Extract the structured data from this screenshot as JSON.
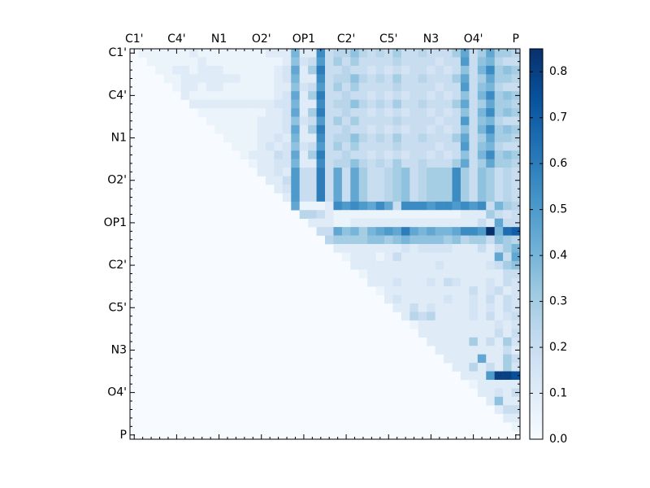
{
  "chart_data": {
    "type": "heatmap",
    "categories": [
      "C1'",
      null,
      null,
      null,
      null,
      "C4'",
      null,
      null,
      null,
      null,
      "N1",
      null,
      null,
      null,
      null,
      "O2'",
      null,
      null,
      null,
      null,
      "OP1",
      null,
      null,
      null,
      null,
      "C2'",
      null,
      null,
      null,
      null,
      "C5'",
      null,
      null,
      null,
      null,
      "N3",
      null,
      null,
      null,
      null,
      "O4'",
      null,
      null,
      null,
      null,
      "P"
    ],
    "values": [
      [
        0.05,
        0.05,
        0.05,
        0.05,
        0.05,
        0.05,
        0.1,
        0.05,
        0.05,
        0.05,
        0.05,
        0.05,
        0.05,
        0.05,
        0.05,
        0.1,
        0.1,
        0.1,
        0.4,
        0.1,
        0.1,
        0.55,
        0.2,
        0.25,
        0.25,
        0.35,
        0.25,
        0.2,
        0.25,
        0.2,
        0.3,
        0.2,
        0.2,
        0.25,
        0.2,
        0.2,
        0.2,
        0.3,
        0.45,
        0.2,
        0.3,
        0.45,
        0.3,
        0.3,
        0.25
      ],
      [
        0.05,
        0.05,
        0.05,
        0.05,
        0.05,
        0.05,
        0.1,
        0.05,
        0.05,
        0.05,
        0.05,
        0.05,
        0.05,
        0.05,
        0.05,
        0.05,
        0.1,
        0.35,
        0.15,
        0.2,
        0.5,
        0.2,
        0.3,
        0.2,
        0.3,
        0.2,
        0.2,
        0.2,
        0.2,
        0.25,
        0.2,
        0.2,
        0.2,
        0.2,
        0.15,
        0.2,
        0.2,
        0.5,
        0.2,
        0.35,
        0.4,
        0.25,
        0.2,
        0.2
      ],
      [
        0.05,
        0.05,
        0.1,
        0.1,
        0.05,
        0.1,
        0.1,
        0.1,
        0.05,
        0.05,
        0.05,
        0.05,
        0.05,
        0.05,
        0.1,
        0.15,
        0.45,
        0.1,
        0.3,
        0.6,
        0.2,
        0.2,
        0.25,
        0.2,
        0.2,
        0.15,
        0.2,
        0.15,
        0.2,
        0.15,
        0.2,
        0.2,
        0.15,
        0.2,
        0.15,
        0.2,
        0.35,
        0.2,
        0.4,
        0.55,
        0.3,
        0.35,
        0.3
      ],
      [
        0.05,
        0.05,
        0.1,
        0.1,
        0.1,
        0.1,
        0.1,
        0.1,
        0.1,
        0.05,
        0.05,
        0.05,
        0.05,
        0.1,
        0.15,
        0.4,
        0.1,
        0.1,
        0.55,
        0.2,
        0.25,
        0.25,
        0.35,
        0.25,
        0.2,
        0.25,
        0.2,
        0.3,
        0.2,
        0.2,
        0.25,
        0.2,
        0.2,
        0.2,
        0.3,
        0.45,
        0.2,
        0.3,
        0.45,
        0.3,
        0.3,
        0.25
      ],
      [
        0.05,
        0.1,
        0.1,
        0.05,
        0.1,
        0.1,
        0.05,
        0.05,
        0.05,
        0.05,
        0.05,
        0.05,
        0.1,
        0.1,
        0.35,
        0.15,
        0.2,
        0.5,
        0.2,
        0.3,
        0.2,
        0.3,
        0.2,
        0.2,
        0.2,
        0.2,
        0.25,
        0.2,
        0.2,
        0.2,
        0.2,
        0.15,
        0.2,
        0.2,
        0.5,
        0.2,
        0.35,
        0.4,
        0.25,
        0.2,
        0.2
      ],
      [
        0.1,
        0.05,
        0.05,
        0.05,
        0.05,
        0.05,
        0.05,
        0.05,
        0.05,
        0.05,
        0.05,
        0.1,
        0.15,
        0.45,
        0.1,
        0.3,
        0.6,
        0.2,
        0.2,
        0.25,
        0.2,
        0.2,
        0.15,
        0.2,
        0.15,
        0.2,
        0.15,
        0.2,
        0.2,
        0.15,
        0.2,
        0.15,
        0.2,
        0.35,
        0.2,
        0.4,
        0.55,
        0.3,
        0.35,
        0.3
      ],
      [
        0.1,
        0.1,
        0.1,
        0.1,
        0.1,
        0.1,
        0.1,
        0.1,
        0.1,
        0.1,
        0.15,
        0.15,
        0.4,
        0.1,
        0.1,
        0.55,
        0.2,
        0.25,
        0.25,
        0.35,
        0.25,
        0.2,
        0.25,
        0.2,
        0.3,
        0.2,
        0.2,
        0.25,
        0.2,
        0.2,
        0.2,
        0.3,
        0.45,
        0.2,
        0.3,
        0.45,
        0.3,
        0.3,
        0.25
      ],
      [
        0.05,
        0.05,
        0.05,
        0.05,
        0.05,
        0.05,
        0.05,
        0.05,
        0.1,
        0.1,
        0.15,
        0.45,
        0.1,
        0.3,
        0.6,
        0.2,
        0.2,
        0.25,
        0.2,
        0.2,
        0.15,
        0.2,
        0.15,
        0.2,
        0.15,
        0.2,
        0.2,
        0.15,
        0.2,
        0.15,
        0.2,
        0.35,
        0.2,
        0.4,
        0.55,
        0.3,
        0.35,
        0.3
      ],
      [
        0.05,
        0.05,
        0.05,
        0.05,
        0.05,
        0.05,
        0.1,
        0.1,
        0.1,
        0.15,
        0.35,
        0.15,
        0.2,
        0.5,
        0.2,
        0.3,
        0.2,
        0.3,
        0.2,
        0.2,
        0.2,
        0.2,
        0.25,
        0.2,
        0.2,
        0.2,
        0.2,
        0.15,
        0.2,
        0.2,
        0.5,
        0.2,
        0.35,
        0.4,
        0.25,
        0.2,
        0.2
      ],
      [
        0.05,
        0.05,
        0.05,
        0.05,
        0.05,
        0.1,
        0.1,
        0.1,
        0.15,
        0.45,
        0.1,
        0.3,
        0.6,
        0.2,
        0.2,
        0.25,
        0.2,
        0.2,
        0.15,
        0.2,
        0.15,
        0.2,
        0.15,
        0.2,
        0.2,
        0.15,
        0.2,
        0.15,
        0.2,
        0.35,
        0.2,
        0.4,
        0.55,
        0.3,
        0.35,
        0.3
      ],
      [
        0.05,
        0.05,
        0.05,
        0.05,
        0.1,
        0.1,
        0.15,
        0.1,
        0.4,
        0.1,
        0.1,
        0.55,
        0.2,
        0.25,
        0.25,
        0.35,
        0.25,
        0.2,
        0.25,
        0.2,
        0.3,
        0.2,
        0.2,
        0.25,
        0.2,
        0.2,
        0.2,
        0.3,
        0.45,
        0.2,
        0.3,
        0.45,
        0.3,
        0.3,
        0.25
      ],
      [
        0.05,
        0.05,
        0.05,
        0.1,
        0.15,
        0.1,
        0.15,
        0.35,
        0.15,
        0.2,
        0.5,
        0.2,
        0.3,
        0.2,
        0.3,
        0.2,
        0.2,
        0.2,
        0.2,
        0.25,
        0.2,
        0.2,
        0.2,
        0.2,
        0.15,
        0.2,
        0.2,
        0.5,
        0.2,
        0.35,
        0.4,
        0.25,
        0.2,
        0.2
      ],
      [
        0.05,
        0.1,
        0.1,
        0.1,
        0.2,
        0.15,
        0.45,
        0.1,
        0.3,
        0.6,
        0.2,
        0.2,
        0.25,
        0.2,
        0.2,
        0.15,
        0.2,
        0.15,
        0.2,
        0.15,
        0.2,
        0.2,
        0.15,
        0.2,
        0.15,
        0.2,
        0.35,
        0.2,
        0.4,
        0.55,
        0.3,
        0.35,
        0.3
      ],
      [
        0.05,
        0.1,
        0.1,
        0.15,
        0.15,
        0.4,
        0.1,
        0.1,
        0.55,
        0.2,
        0.25,
        0.25,
        0.35,
        0.25,
        0.2,
        0.25,
        0.2,
        0.3,
        0.2,
        0.2,
        0.25,
        0.2,
        0.2,
        0.2,
        0.3,
        0.45,
        0.2,
        0.3,
        0.45,
        0.3,
        0.3,
        0.25
      ],
      [
        0.1,
        0.1,
        0.15,
        0.1,
        0.5,
        0.2,
        0.2,
        0.6,
        0.2,
        0.45,
        0.2,
        0.45,
        0.3,
        0.2,
        0.2,
        0.25,
        0.3,
        0.35,
        0.2,
        0.25,
        0.3,
        0.3,
        0.3,
        0.55,
        0.3,
        0.2,
        0.35,
        0.3,
        0.2,
        0.25,
        0.2
      ],
      [
        0.1,
        0.1,
        0.2,
        0.5,
        0.2,
        0.2,
        0.6,
        0.2,
        0.45,
        0.2,
        0.45,
        0.3,
        0.2,
        0.2,
        0.25,
        0.3,
        0.35,
        0.2,
        0.25,
        0.3,
        0.3,
        0.3,
        0.55,
        0.3,
        0.2,
        0.35,
        0.3,
        0.2,
        0.25,
        0.2
      ],
      [
        0.1,
        0.15,
        0.5,
        0.2,
        0.2,
        0.6,
        0.2,
        0.45,
        0.2,
        0.45,
        0.3,
        0.2,
        0.2,
        0.25,
        0.3,
        0.35,
        0.2,
        0.25,
        0.3,
        0.3,
        0.3,
        0.55,
        0.3,
        0.2,
        0.35,
        0.3,
        0.2,
        0.25,
        0.2
      ],
      [
        0.1,
        0.5,
        0.2,
        0.2,
        0.6,
        0.2,
        0.45,
        0.2,
        0.45,
        0.3,
        0.2,
        0.2,
        0.25,
        0.3,
        0.35,
        0.2,
        0.25,
        0.3,
        0.3,
        0.3,
        0.55,
        0.3,
        0.2,
        0.35,
        0.3,
        0.2,
        0.25,
        0.2
      ],
      [
        0.45,
        0.05,
        0.05,
        0.05,
        0.1,
        0.55,
        0.5,
        0.55,
        0.5,
        0.45,
        0.55,
        0.45,
        0.2,
        0.55,
        0.55,
        0.55,
        0.5,
        0.55,
        0.55,
        0.5,
        0.55,
        0.5,
        0.55,
        0.2,
        0.4,
        0.3,
        0.25
      ],
      [
        0.25,
        0.25,
        0.2,
        0.1,
        0.05,
        0.05,
        0.05,
        0.05,
        0.05,
        0.05,
        0.05,
        0.05,
        0.05,
        0.05,
        0.05,
        0.05,
        0.05,
        0.05,
        0.05,
        0.1,
        0.1,
        0.1,
        0.3,
        0.2,
        0.15,
        0.2
      ],
      [
        0.1,
        0.1,
        0.1,
        0.05,
        0.05,
        0.1,
        0.1,
        0.1,
        0.1,
        0.1,
        0.1,
        0.1,
        0.1,
        0.1,
        0.1,
        0.1,
        0.1,
        0.1,
        0.1,
        0.1,
        0.2,
        0.1,
        0.45,
        0.2,
        0.2
      ],
      [
        0.2,
        0.2,
        0.45,
        0.35,
        0.4,
        0.3,
        0.4,
        0.45,
        0.5,
        0.45,
        0.6,
        0.45,
        0.4,
        0.45,
        0.4,
        0.4,
        0.45,
        0.55,
        0.55,
        0.5,
        0.85,
        0.4,
        0.65,
        0.7
      ],
      [
        0.25,
        0.3,
        0.3,
        0.3,
        0.3,
        0.35,
        0.35,
        0.3,
        0.35,
        0.4,
        0.35,
        0.35,
        0.35,
        0.35,
        0.3,
        0.35,
        0.25,
        0.3,
        0.3,
        0.2,
        0.35,
        0.3,
        0.25
      ],
      [
        0.1,
        0.1,
        0.1,
        0.1,
        0.1,
        0.1,
        0.1,
        0.1,
        0.15,
        0.1,
        0.15,
        0.15,
        0.15,
        0.15,
        0.1,
        0.1,
        0.1,
        0.2,
        0.1,
        0.2,
        0.3,
        0.4
      ],
      [
        0.05,
        0.1,
        0.1,
        0.1,
        0.05,
        0.1,
        0.2,
        0.1,
        0.1,
        0.1,
        0.1,
        0.1,
        0.1,
        0.1,
        0.1,
        0.1,
        0.1,
        0.1,
        0.45,
        0.2,
        0.45
      ],
      [
        0.1,
        0.1,
        0.1,
        0.1,
        0.1,
        0.1,
        0.1,
        0.1,
        0.1,
        0.1,
        0.15,
        0.1,
        0.1,
        0.1,
        0.1,
        0.1,
        0.15,
        0.2,
        0.3,
        0.35
      ],
      [
        0.05,
        0.1,
        0.1,
        0.1,
        0.1,
        0.1,
        0.1,
        0.1,
        0.1,
        0.1,
        0.1,
        0.1,
        0.1,
        0.1,
        0.1,
        0.1,
        0.1,
        0.2,
        0.2
      ],
      [
        0.1,
        0.1,
        0.1,
        0.15,
        0.1,
        0.1,
        0.1,
        0.15,
        0.1,
        0.2,
        0.15,
        0.1,
        0.1,
        0.1,
        0.15,
        0.1,
        0.2,
        0.15
      ],
      [
        0.05,
        0.1,
        0.1,
        0.1,
        0.1,
        0.1,
        0.1,
        0.1,
        0.1,
        0.1,
        0.1,
        0.2,
        0.1,
        0.15,
        0.2,
        0.1,
        0.15
      ],
      [
        0.1,
        0.15,
        0.1,
        0.1,
        0.1,
        0.1,
        0.1,
        0.15,
        0.1,
        0.1,
        0.15,
        0.1,
        0.2,
        0.1,
        0.2,
        0.15
      ],
      [
        0.1,
        0.1,
        0.2,
        0.1,
        0.15,
        0.1,
        0.1,
        0.1,
        0.1,
        0.15,
        0.1,
        0.15,
        0.1,
        0.2,
        0.15
      ],
      [
        0.1,
        0.25,
        0.2,
        0.25,
        0.1,
        0.1,
        0.1,
        0.1,
        0.15,
        0.1,
        0.2,
        0.1,
        0.15,
        0.2
      ],
      [
        0.05,
        0.1,
        0.1,
        0.1,
        0.1,
        0.1,
        0.1,
        0.1,
        0.1,
        0.1,
        0.15,
        0.1,
        0.15
      ],
      [
        0.1,
        0.1,
        0.1,
        0.1,
        0.1,
        0.1,
        0.1,
        0.1,
        0.1,
        0.2,
        0.1,
        0.2
      ],
      [
        0.1,
        0.1,
        0.1,
        0.1,
        0.1,
        0.3,
        0.1,
        0.2,
        0.1,
        0.3,
        0.15
      ],
      [
        0.1,
        0.1,
        0.1,
        0.1,
        0.1,
        0.1,
        0.1,
        0.1,
        0.2,
        0.1
      ],
      [
        0.1,
        0.1,
        0.1,
        0.1,
        0.45,
        0.1,
        0.1,
        0.3,
        0.2
      ],
      [
        0.1,
        0.1,
        0.25,
        0.1,
        0.2,
        0.1,
        0.3,
        0.15
      ],
      [
        0.1,
        0.1,
        0.1,
        0.5,
        0.8,
        0.8,
        0.75
      ],
      [
        0.05,
        0.1,
        0.1,
        0.1,
        0.1,
        0.1
      ],
      [
        0.1,
        0.1,
        0.15,
        0.1,
        0.2
      ],
      [
        0.1,
        0.35,
        0.1,
        0.1
      ],
      [
        0.1,
        0.2,
        0.2
      ],
      [
        0.1,
        0.1
      ],
      [
        0.05
      ]
    ],
    "clim": [
      0,
      0.85
    ],
    "cticks": [
      {
        "value": 0,
        "label": "0.0"
      },
      0.1,
      0.2,
      0.3,
      0.4,
      0.5,
      0.6,
      0.7,
      0.8
    ],
    "colors": [
      "#f7fbff",
      "#deebf7",
      "#c6dbef",
      "#9ecae1",
      "#6baed6",
      "#4292c6",
      "#2171b5",
      "#08519c",
      "#08306b"
    ]
  }
}
